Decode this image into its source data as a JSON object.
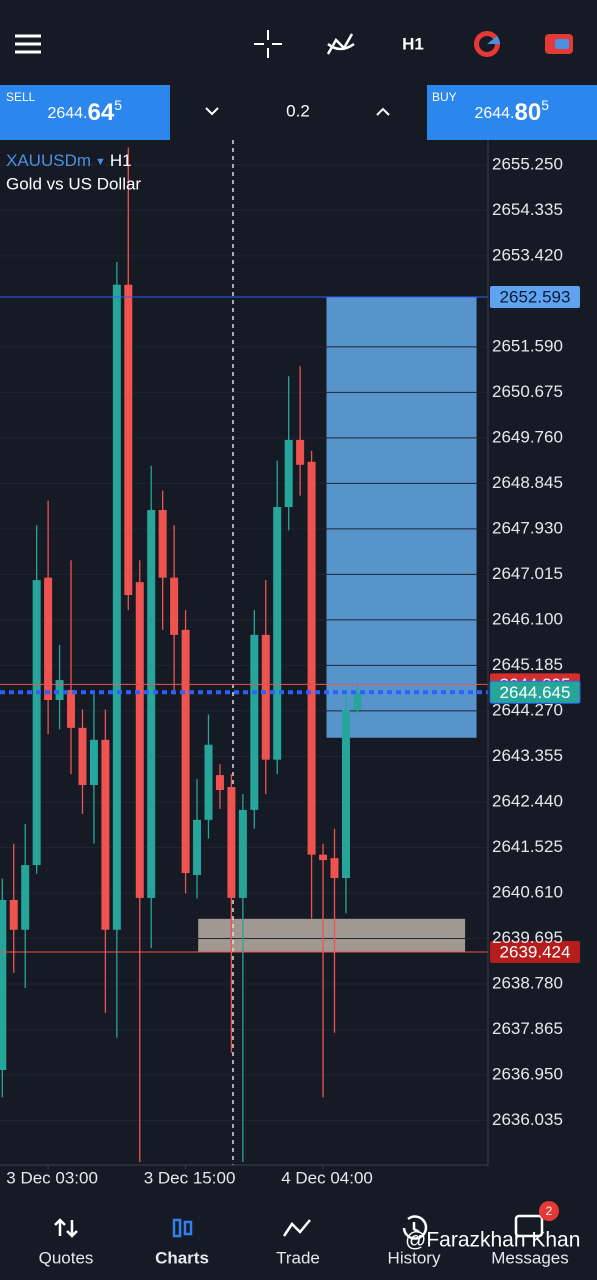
{
  "toolbar": {
    "timeframe": "H1"
  },
  "trade_bar": {
    "sell": {
      "label": "SELL",
      "price_main": "2644.",
      "price_big": "64",
      "price_sup": "5"
    },
    "volume": "0.2",
    "buy": {
      "label": "BUY",
      "price_main": "2644.",
      "price_big": "80",
      "price_sup": "5"
    }
  },
  "chart_data": {
    "type": "candlestick",
    "symbol": "XAUUSDm",
    "timeframe": "H1",
    "subtitle": "Gold vs US Dollar",
    "x": [
      0,
      1,
      2,
      3,
      4,
      5,
      6,
      7,
      8,
      9,
      10,
      11,
      12,
      13,
      14,
      15,
      16,
      17,
      18,
      19,
      20,
      21,
      22,
      23,
      24,
      25,
      26,
      27,
      28,
      29,
      30,
      31
    ],
    "open": [
      2637.05,
      2640.47,
      2639.87,
      2641.17,
      2646.95,
      2644.49,
      2644.69,
      2643.93,
      2642.78,
      2643.69,
      2639.87,
      2652.84,
      2646.86,
      2640.51,
      2648.31,
      2646.95,
      2645.9,
      2640.97,
      2642.08,
      2642.98,
      2642.74,
      2640.51,
      2642.28,
      2645.8,
      2643.29,
      2648.37,
      2649.72,
      2649.28,
      2641.38,
      2641.31,
      2640.91,
      2644.29
    ],
    "high": [
      2640.9,
      2641.6,
      2642.0,
      2648.0,
      2648.5,
      2645.6,
      2647.3,
      2644.3,
      2644.6,
      2644.3,
      2653.3,
      2655.6,
      2647.3,
      2649.2,
      2648.7,
      2648.0,
      2646.3,
      2642.9,
      2644.2,
      2643.2,
      2643.0,
      2642.6,
      2646.3,
      2646.9,
      2649.3,
      2651.0,
      2651.2,
      2649.5,
      2641.6,
      2641.9,
      2644.6,
      2644.8
    ],
    "low": [
      2636.5,
      2639.0,
      2638.7,
      2641.0,
      2643.8,
      2643.9,
      2643.0,
      2642.2,
      2641.6,
      2638.2,
      2637.7,
      2646.3,
      2635.2,
      2639.5,
      2645.9,
      2644.6,
      2640.6,
      2640.5,
      2641.7,
      2642.3,
      2637.4,
      2635.2,
      2641.9,
      2642.6,
      2643.0,
      2647.9,
      2648.6,
      2640.1,
      2636.5,
      2637.8,
      2640.2,
      2644.2
    ],
    "close": [
      2640.47,
      2639.87,
      2641.17,
      2646.9,
      2644.49,
      2644.89,
      2643.93,
      2642.78,
      2643.69,
      2639.87,
      2652.84,
      2646.6,
      2640.51,
      2648.31,
      2646.95,
      2645.8,
      2641.01,
      2642.08,
      2643.59,
      2642.68,
      2640.51,
      2642.28,
      2645.8,
      2643.29,
      2648.37,
      2649.72,
      2649.22,
      2641.38,
      2641.27,
      2640.91,
      2644.29,
      2644.645
    ],
    "up_color": "#26a69a",
    "down_color": "#ef5350",
    "xlim": [
      -0.2,
      42.4
    ],
    "xticks": [
      {
        "value": 4,
        "label": "3 Dec 03:00"
      },
      {
        "value": 16,
        "label": "3 Dec 15:00"
      },
      {
        "value": 28,
        "label": "4 Dec 04:00"
      }
    ],
    "ylim": [
      2635.14,
      2655.75
    ],
    "yticks": [
      {
        "value": 2655.25,
        "label": "2655.250"
      },
      {
        "value": 2654.335,
        "label": "2654.335"
      },
      {
        "value": 2653.42,
        "label": "2653.420"
      },
      {
        "value": 2651.59,
        "label": "2651.590"
      },
      {
        "value": 2650.675,
        "label": "2650.675"
      },
      {
        "value": 2649.76,
        "label": "2649.760"
      },
      {
        "value": 2648.845,
        "label": "2648.845"
      },
      {
        "value": 2647.93,
        "label": "2647.930"
      },
      {
        "value": 2647.015,
        "label": "2647.015"
      },
      {
        "value": 2646.1,
        "label": "2646.100"
      },
      {
        "value": 2645.185,
        "label": "2645.185"
      },
      {
        "value": 2644.27,
        "label": "2644.270"
      },
      {
        "value": 2643.355,
        "label": "2643.355"
      },
      {
        "value": 2642.44,
        "label": "2642.440"
      },
      {
        "value": 2641.525,
        "label": "2641.525"
      },
      {
        "value": 2640.61,
        "label": "2640.610"
      },
      {
        "value": 2639.695,
        "label": "2639.695"
      },
      {
        "value": 2638.78,
        "label": "2638.780"
      },
      {
        "value": 2637.865,
        "label": "2637.865"
      },
      {
        "value": 2636.95,
        "label": "2636.950"
      },
      {
        "value": 2636.035,
        "label": "2636.035"
      }
    ],
    "grid": true,
    "zones": [
      {
        "x0": 28.3,
        "x1": 41.4,
        "y0": 2643.73,
        "y1": 2652.593,
        "color": "#5b9bd5"
      },
      {
        "x0": 17.1,
        "x1": 40.4,
        "y0": 2639.424,
        "y1": 2640.09,
        "color": "#a89f97"
      }
    ],
    "price_lines": [
      {
        "value": 2652.593,
        "color": "#2962ff",
        "tag_color": "#5fa3f0",
        "text_color": "#0b1a33",
        "style": "solid"
      },
      {
        "value": 2644.805,
        "color": "#ef5350",
        "tag_color": "#d32f2f",
        "text_color": "#ffffff",
        "style": "solid"
      },
      {
        "value": 2644.645,
        "color": "#2962ff",
        "tag_color": "#26a69a",
        "text_color": "#ffffff",
        "style": "dotted"
      },
      {
        "value": 2639.424,
        "color": "#ef5350",
        "tag_color": "#b71c1c",
        "text_color": "#ffffff",
        "style": "solid"
      }
    ]
  },
  "nav": {
    "items": [
      "Quotes",
      "Charts",
      "Trade",
      "History",
      "Messages"
    ],
    "active": 1,
    "badge": "2"
  },
  "watermark": "@Farazkhan Khan"
}
